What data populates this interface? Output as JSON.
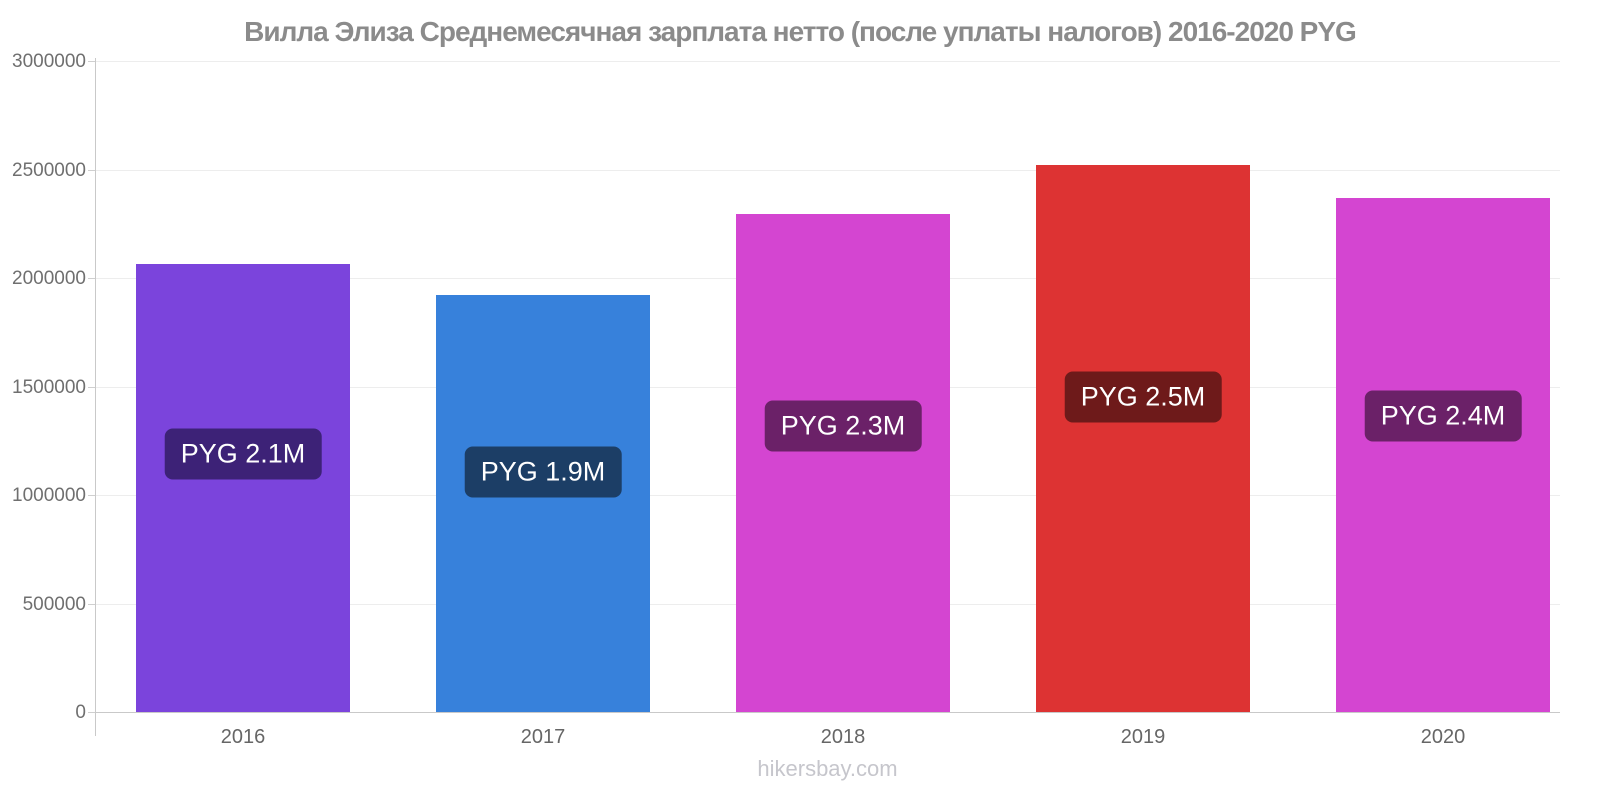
{
  "page": {
    "footer_link": "hikersbay.com"
  },
  "chart_data": {
    "type": "bar",
    "title": "Вилла Элиза Среднемесячная зарплата нетто (после уплаты налогов) 2016-2020 PYG",
    "xlabel": "",
    "ylabel": "",
    "currency": "PYG",
    "categories": [
      "2016",
      "2017",
      "2018",
      "2019",
      "2020"
    ],
    "values": [
      2065000,
      1920000,
      2295000,
      2520000,
      2370000
    ],
    "bar_labels": [
      "PYG 2.1M",
      "PYG 1.9M",
      "PYG 2.3M",
      "PYG 2.5M",
      "PYG 2.4M"
    ],
    "bar_colors": [
      "#7b44dc",
      "#3781db",
      "#d445d1",
      "#dd3333",
      "#d445d1"
    ],
    "badge_colors": [
      "#3d2277",
      "#1c3e66",
      "#6b2168",
      "#6e1a1a",
      "#6b2168"
    ],
    "ylim": [
      0,
      3000000
    ],
    "yticks": [
      0,
      500000,
      1000000,
      1500000,
      2000000,
      2500000,
      3000000
    ],
    "grid": true,
    "legend_position": "none"
  },
  "colors": {
    "title_text": "#8b8b8b",
    "axis_line": "#c9c9c9",
    "grid_line": "#ededed",
    "y_tick_text": "#6f6f6f",
    "x_tick_text": "#666666",
    "badge_text": "#ffffff",
    "footer_text": "#c6c6cc",
    "background": "#ffffff"
  }
}
